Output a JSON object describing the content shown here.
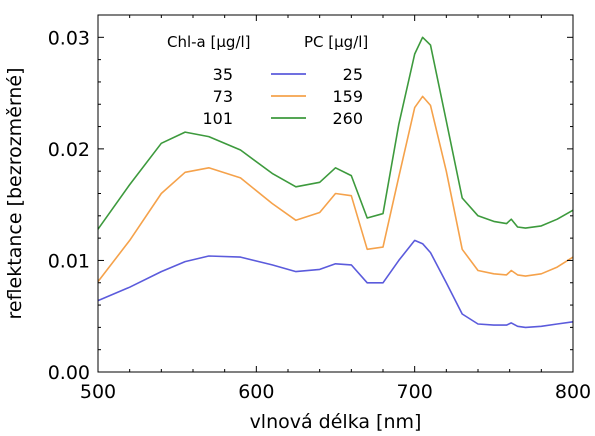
{
  "chart_data": {
    "type": "line",
    "title": "",
    "xlabel": "vlnová délka [nm]",
    "ylabel": "reflektance [bezrozměrné]",
    "xlim": [
      500,
      800
    ],
    "ylim": [
      0.0,
      0.032
    ],
    "xticks": [
      500,
      600,
      700,
      800
    ],
    "xtick_labels": [
      "500",
      "600",
      "700",
      "800"
    ],
    "yticks": [
      0.0,
      0.01,
      0.02,
      0.03
    ],
    "ytick_labels": [
      "0.00",
      "0.01",
      "0.02",
      "0.03"
    ],
    "grid": false,
    "legend": {
      "placement": "top-left",
      "header_left": "Chl-a [µg/l]",
      "header_right": "PC [µg/l]",
      "rows": [
        {
          "chl": "35",
          "pc": "25",
          "color": "#5b5bdc"
        },
        {
          "chl": "73",
          "pc": "159",
          "color": "#f5a24b"
        },
        {
          "chl": "101",
          "pc": "260",
          "color": "#3d9a3d"
        }
      ]
    },
    "x": [
      500,
      520,
      540,
      555,
      570,
      590,
      610,
      625,
      640,
      650,
      660,
      670,
      680,
      690,
      700,
      705,
      710,
      720,
      730,
      740,
      750,
      758,
      761,
      765,
      770,
      780,
      790,
      800
    ],
    "series": [
      {
        "color": "#5b5bdc",
        "values": [
          0.0064,
          0.0076,
          0.009,
          0.0099,
          0.0104,
          0.0103,
          0.0096,
          0.009,
          0.0092,
          0.0097,
          0.0096,
          0.008,
          0.008,
          0.01,
          0.0118,
          0.0115,
          0.0107,
          0.008,
          0.0052,
          0.0043,
          0.0042,
          0.0042,
          0.0044,
          0.0041,
          0.004,
          0.0041,
          0.0043,
          0.0045
        ]
      },
      {
        "color": "#f5a24b",
        "values": [
          0.0081,
          0.0118,
          0.016,
          0.0179,
          0.0183,
          0.0174,
          0.0151,
          0.0136,
          0.0143,
          0.016,
          0.0158,
          0.011,
          0.0112,
          0.0175,
          0.0237,
          0.0247,
          0.0239,
          0.018,
          0.011,
          0.0091,
          0.0088,
          0.0087,
          0.0091,
          0.0087,
          0.0086,
          0.0088,
          0.0094,
          0.0103
        ]
      },
      {
        "color": "#3d9a3d",
        "values": [
          0.0128,
          0.0168,
          0.0205,
          0.0215,
          0.0211,
          0.0199,
          0.0178,
          0.0166,
          0.017,
          0.0183,
          0.0176,
          0.0138,
          0.0142,
          0.0222,
          0.0285,
          0.03,
          0.0293,
          0.0225,
          0.0156,
          0.014,
          0.0135,
          0.0133,
          0.0137,
          0.013,
          0.0129,
          0.0131,
          0.0137,
          0.0145
        ]
      }
    ]
  }
}
